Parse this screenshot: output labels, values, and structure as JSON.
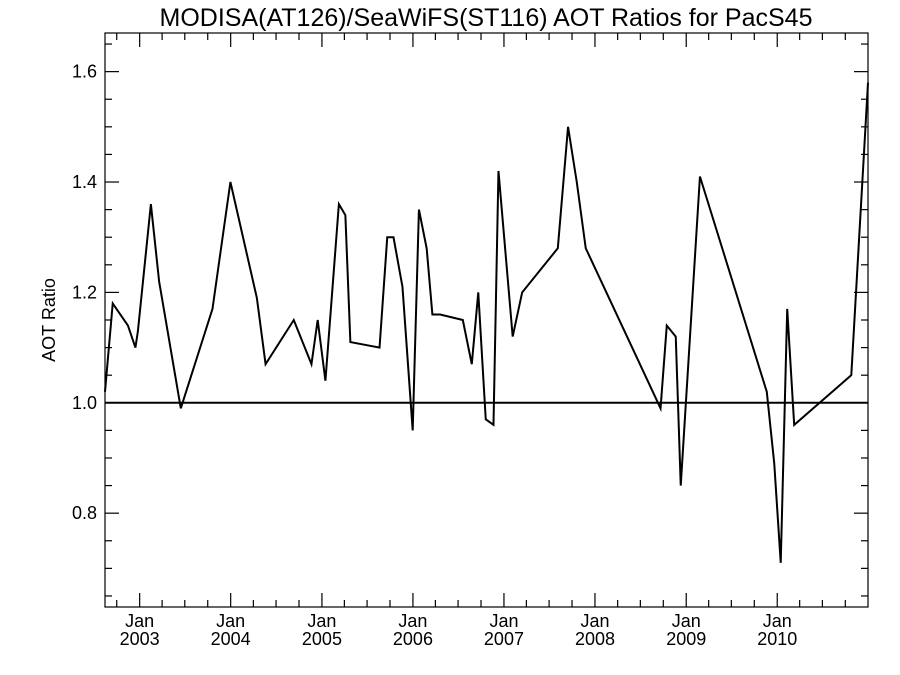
{
  "chart_data": {
    "type": "line",
    "title": "MODISA(AT126)/SeaWiFS(ST116)  AOT Ratios for PacS45",
    "xlabel": "",
    "ylabel": "AOT Ratio",
    "xlim": [
      "2002-08-15",
      "2010-12-31"
    ],
    "ylim": [
      0.63,
      1.67
    ],
    "y_ticks": [
      0.8,
      1.0,
      1.2,
      1.4,
      1.6
    ],
    "y_tick_labels": [
      "0.8",
      "1.0",
      "1.2",
      "1.4",
      "1.6"
    ],
    "x_ticks": [
      "2003-01-01",
      "2004-01-01",
      "2005-01-01",
      "2006-01-01",
      "2007-01-01",
      "2008-01-01",
      "2009-01-01",
      "2010-01-01"
    ],
    "x_tick_labels": [
      {
        "month": "Jan",
        "year": "2003"
      },
      {
        "month": "Jan",
        "year": "2004"
      },
      {
        "month": "Jan",
        "year": "2005"
      },
      {
        "month": "Jan",
        "year": "2006"
      },
      {
        "month": "Jan",
        "year": "2007"
      },
      {
        "month": "Jan",
        "year": "2008"
      },
      {
        "month": "Jan",
        "year": "2009"
      },
      {
        "month": "Jan",
        "year": "2010"
      }
    ],
    "reference_line": 1.0,
    "grid": false,
    "series": [
      {
        "x": [
          "2002-08-15",
          "2002-09-15",
          "2002-11-15",
          "2002-12-15",
          "2002-12-25",
          "2003-02-15",
          "2003-03-20",
          "2003-06-15",
          "2003-10-20",
          "2003-12-31",
          "2004-04-15",
          "2004-05-20",
          "2004-09-10",
          "2004-11-20",
          "2004-12-15",
          "2005-01-15",
          "2005-03-10",
          "2005-04-05",
          "2005-04-25",
          "2005-08-20",
          "2005-09-20",
          "2005-10-15",
          "2005-11-20",
          "2005-12-31",
          "2006-01-25",
          "2006-02-25",
          "2006-03-20",
          "2006-04-20",
          "2006-07-20",
          "2006-08-25",
          "2006-09-20",
          "2006-10-20",
          "2006-11-20",
          "2006-12-10",
          "2007-02-05",
          "2007-03-15",
          "2007-08-05",
          "2007-09-15",
          "2007-10-20",
          "2007-11-25",
          "2008-09-20",
          "2008-10-15",
          "2008-11-20",
          "2008-12-10",
          "2009-02-25",
          "2009-11-20",
          "2009-12-20",
          "2010-01-15",
          "2010-02-10",
          "2010-03-10",
          "2010-10-25",
          "2010-12-31"
        ],
        "y": [
          1.02,
          1.18,
          1.14,
          1.1,
          1.13,
          1.36,
          1.22,
          0.99,
          1.17,
          1.4,
          1.19,
          1.07,
          1.15,
          1.07,
          1.15,
          1.04,
          1.36,
          1.34,
          1.11,
          1.1,
          1.3,
          1.3,
          1.21,
          0.95,
          1.35,
          1.28,
          1.16,
          1.16,
          1.15,
          1.07,
          1.2,
          0.97,
          0.96,
          1.42,
          1.12,
          1.2,
          1.28,
          1.5,
          1.4,
          1.28,
          0.99,
          1.14,
          1.12,
          0.85,
          1.41,
          1.02,
          0.89,
          0.71,
          1.17,
          0.96,
          1.05,
          1.58
        ]
      }
    ]
  }
}
